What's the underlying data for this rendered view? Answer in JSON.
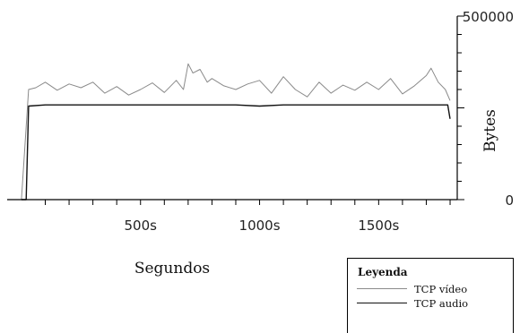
{
  "chart_data": {
    "type": "line",
    "title": "",
    "xlabel": "Segundos",
    "ylabel": "Bytes",
    "xlim": [
      -60,
      1830
    ],
    "ylim": [
      0,
      500000
    ],
    "x_ticks": [
      500,
      1000,
      1500
    ],
    "x_tick_labels": [
      "500s",
      "1000s",
      "1500s"
    ],
    "y_ticks": [
      0,
      500000
    ],
    "y_tick_labels": [
      "0",
      "500000"
    ],
    "grid": false,
    "legend": {
      "title": "Leyenda",
      "position": "bottom-right",
      "entries": [
        "TCP vídeo",
        "TCP audio"
      ]
    },
    "series": [
      {
        "name": "TCP vídeo",
        "color": "#8a8a8a",
        "x": [
          0,
          30,
          60,
          100,
          150,
          200,
          250,
          300,
          350,
          400,
          450,
          500,
          550,
          600,
          650,
          680,
          700,
          720,
          750,
          780,
          800,
          850,
          900,
          950,
          1000,
          1050,
          1100,
          1150,
          1200,
          1250,
          1300,
          1350,
          1400,
          1450,
          1500,
          1550,
          1600,
          1650,
          1700,
          1720,
          1750,
          1780,
          1800
        ],
        "y": [
          0,
          300000,
          305000,
          320000,
          298000,
          315000,
          305000,
          320000,
          290000,
          308000,
          285000,
          300000,
          318000,
          292000,
          325000,
          300000,
          370000,
          345000,
          355000,
          320000,
          330000,
          310000,
          300000,
          315000,
          325000,
          290000,
          335000,
          300000,
          280000,
          320000,
          290000,
          312000,
          298000,
          320000,
          300000,
          330000,
          288000,
          310000,
          338000,
          358000,
          320000,
          300000,
          270000
        ]
      },
      {
        "name": "TCP audio",
        "color": "#111111",
        "x": [
          0,
          20,
          30,
          100,
          300,
          500,
          700,
          900,
          1000,
          1100,
          1300,
          1500,
          1700,
          1790,
          1800
        ],
        "y": [
          0,
          0,
          255000,
          258000,
          258000,
          258000,
          258000,
          258000,
          255000,
          258000,
          258000,
          258000,
          258000,
          258000,
          220000
        ]
      }
    ]
  }
}
